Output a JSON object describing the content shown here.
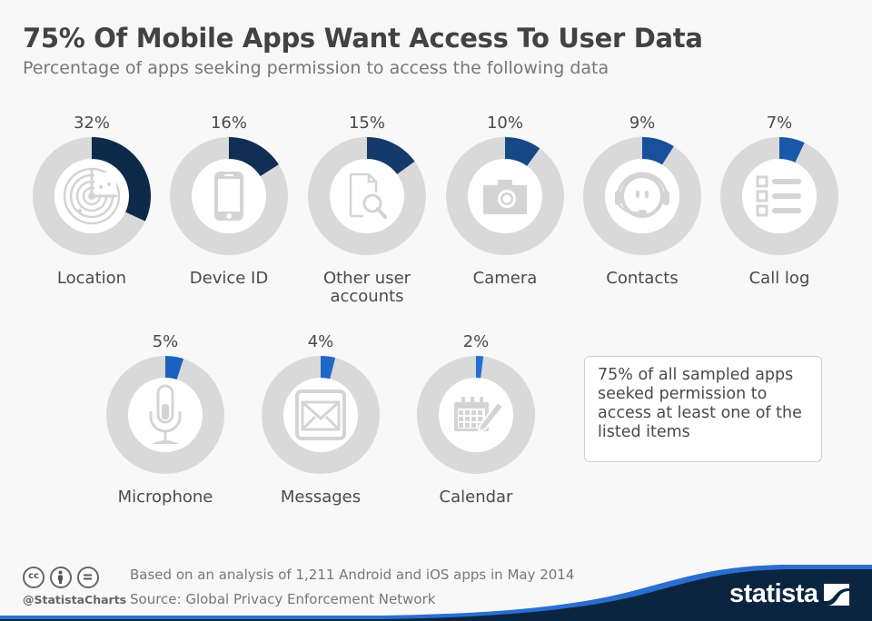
{
  "header": {
    "title": "75% Of Mobile Apps Want Access To User Data",
    "subtitle": "Percentage of apps seeking permission to access the following data"
  },
  "chart_data": {
    "type": "pie",
    "variant": "donut-grid",
    "title": "75% Of Mobile Apps Want Access To User Data",
    "subtitle": "Percentage of apps seeking permission to access the following data",
    "unit": "%",
    "items": [
      {
        "label": "Location",
        "label_lines": [
          "Location"
        ],
        "value": 32,
        "pct_label": "32%",
        "icon": "radar-icon",
        "color": "#0d2a4a"
      },
      {
        "label": "Device ID",
        "label_lines": [
          "Device ID"
        ],
        "value": 16,
        "pct_label": "16%",
        "icon": "smartphone-icon",
        "color": "#112f55"
      },
      {
        "label": "Other user accounts",
        "label_lines": [
          "Other user",
          "accounts"
        ],
        "value": 15,
        "pct_label": "15%",
        "icon": "document-search-icon",
        "color": "#133a6a"
      },
      {
        "label": "Camera",
        "label_lines": [
          "Camera"
        ],
        "value": 10,
        "pct_label": "10%",
        "icon": "camera-icon",
        "color": "#164786"
      },
      {
        "label": "Contacts",
        "label_lines": [
          "Contacts"
        ],
        "value": 9,
        "pct_label": "9%",
        "icon": "headset-icon",
        "color": "#18509a"
      },
      {
        "label": "Call log",
        "label_lines": [
          "Call log"
        ],
        "value": 7,
        "pct_label": "7%",
        "icon": "list-icon",
        "color": "#1a58aa"
      },
      {
        "label": "Microphone",
        "label_lines": [
          "Microphone"
        ],
        "value": 5,
        "pct_label": "5%",
        "icon": "microphone-icon",
        "color": "#1c62bd"
      },
      {
        "label": "Messages",
        "label_lines": [
          "Messages"
        ],
        "value": 4,
        "pct_label": "4%",
        "icon": "envelope-icon",
        "color": "#1e68c8"
      },
      {
        "label": "Calendar",
        "label_lines": [
          "Calendar"
        ],
        "value": 2,
        "pct_label": "2%",
        "icon": "calendar-edit-icon",
        "color": "#1f6fd6"
      }
    ],
    "track_color": "#d9d9d9",
    "range": [
      0,
      100
    ]
  },
  "note": {
    "text": "75% of all sampled apps seeked permission to access at least one of the listed items"
  },
  "footer": {
    "license_icons": [
      "cc-icon",
      "attribution-icon",
      "no-derivatives-icon"
    ],
    "cc_glyphs": [
      "cc",
      "=",
      ""
    ],
    "handle": "@StatistaCharts",
    "note": "Based on an analysis of 1,211 Android and iOS apps in May 2014",
    "source": "Source: Global Privacy Enforcement Network",
    "brand": "statista",
    "brand_dark": "#0b2541",
    "brand_accent": "#2a6ed2"
  }
}
